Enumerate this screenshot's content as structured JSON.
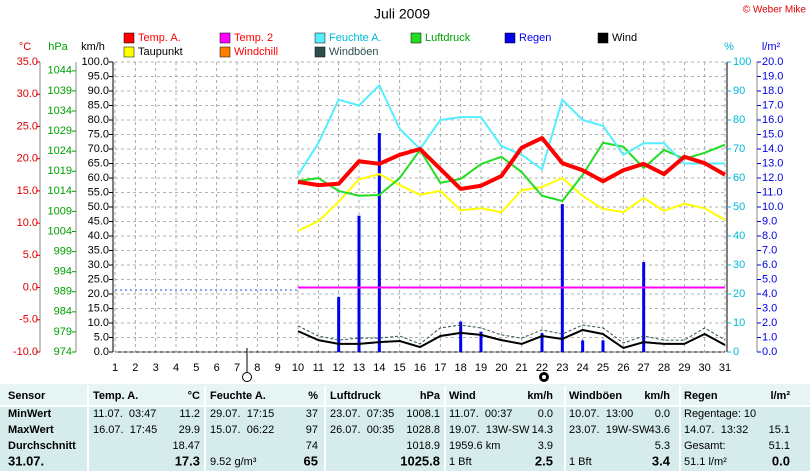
{
  "chart_data": {
    "type": "line",
    "title": "Juli 2009",
    "copyright": "© Weber Mike",
    "categories": [
      1,
      2,
      3,
      4,
      5,
      6,
      7,
      8,
      9,
      10,
      11,
      12,
      13,
      14,
      15,
      16,
      17,
      18,
      19,
      20,
      21,
      22,
      23,
      24,
      25,
      26,
      27,
      28,
      29,
      30,
      31
    ],
    "y_label": "km/h",
    "ylim": [
      0,
      100
    ],
    "yticks": [
      {
        "value": 100,
        "label": "100.0"
      },
      {
        "value": 95,
        "label": "95.0"
      },
      {
        "value": 90,
        "label": "90.0"
      },
      {
        "value": 85,
        "label": "85.0"
      },
      {
        "value": 80,
        "label": "80.0"
      },
      {
        "value": 75,
        "label": "75.0"
      },
      {
        "value": 70,
        "label": "70.0"
      },
      {
        "value": 65,
        "label": "65.0"
      },
      {
        "value": 60,
        "label": "60.0"
      },
      {
        "value": 55,
        "label": "55.0"
      },
      {
        "value": 50,
        "label": "50.0"
      },
      {
        "value": 45,
        "label": "45.0"
      },
      {
        "value": 40,
        "label": "40.0"
      },
      {
        "value": 35,
        "label": "35.0"
      },
      {
        "value": 30,
        "label": "30.0"
      },
      {
        "value": 25,
        "label": "25.0"
      },
      {
        "value": 20,
        "label": "20.0"
      },
      {
        "value": 15,
        "label": "15.0"
      },
      {
        "value": 10,
        "label": "10.0"
      },
      {
        "value": 5,
        "label": "5.0"
      },
      {
        "value": 0,
        "label": "0.0"
      }
    ],
    "y2_label": "%",
    "y2lim": [
      0,
      100
    ],
    "y2ticks": [
      100,
      90,
      80,
      70,
      60,
      50,
      40,
      30,
      20,
      10,
      0
    ],
    "temp_axis": {
      "label": "°C",
      "lim": [
        -10,
        35
      ],
      "color": "#e00000",
      "ticks": [
        {
          "value": 35,
          "label": "35.0"
        },
        {
          "value": 30,
          "label": "30.0"
        },
        {
          "value": 25,
          "label": "25.0"
        },
        {
          "value": 20,
          "label": "20.0"
        },
        {
          "value": 15,
          "label": "15.0"
        },
        {
          "value": 10,
          "label": "10.0"
        },
        {
          "value": 5,
          "label": "5.0"
        },
        {
          "value": 0,
          "label": "0.0"
        },
        {
          "value": -5,
          "label": "-5.0"
        },
        {
          "value": -10,
          "label": "-10.0"
        }
      ]
    },
    "pressure_axis": {
      "label": "hPa",
      "lim": [
        974,
        1046.2
      ],
      "color": "#00a000",
      "ticks": [
        1044,
        1039,
        1034,
        1029,
        1024,
        1019,
        1014,
        1009,
        1004,
        999,
        994,
        989,
        984,
        979,
        974
      ]
    },
    "rain_axis": {
      "label": "l/m²",
      "lim": [
        0,
        20
      ],
      "color": "#0000e0",
      "ticks": [
        {
          "value": 20,
          "label": "20.0"
        },
        {
          "value": 19,
          "label": "19.0"
        },
        {
          "value": 18,
          "label": "18.0"
        },
        {
          "value": 17,
          "label": "17.0"
        },
        {
          "value": 16,
          "label": "16.0"
        },
        {
          "value": 15,
          "label": "15.0"
        },
        {
          "value": 14,
          "label": "14.0"
        },
        {
          "value": 13,
          "label": "13.0"
        },
        {
          "value": 12,
          "label": "12.0"
        },
        {
          "value": 11,
          "label": "11.0"
        },
        {
          "value": 10,
          "label": "10.0"
        },
        {
          "value": 9,
          "label": "9.0"
        },
        {
          "value": 8,
          "label": "8.0"
        },
        {
          "value": 7,
          "label": "7.0"
        },
        {
          "value": 6,
          "label": "6.0"
        },
        {
          "value": 5,
          "label": "5.0"
        },
        {
          "value": 4,
          "label": "4.0"
        },
        {
          "value": 3,
          "label": "3.0"
        },
        {
          "value": 2,
          "label": "2.0"
        },
        {
          "value": 1,
          "label": "1.0"
        },
        {
          "value": 0,
          "label": "0.0"
        }
      ]
    },
    "y2_color": "#00b8d8",
    "grid": true,
    "series": [
      {
        "name": "Temp. A.",
        "color": "#ff0000",
        "axis": "temp",
        "values": [
          null,
          null,
          null,
          null,
          null,
          null,
          null,
          null,
          null,
          16.4,
          15.9,
          16.1,
          19.6,
          19.2,
          20.6,
          21.5,
          18.4,
          15.3,
          15.8,
          17.3,
          21.7,
          23.2,
          19.3,
          18.2,
          16.5,
          18.2,
          19.2,
          17.6,
          20.3,
          19.3,
          17.5
        ]
      },
      {
        "name": "Temp. 2",
        "color": "#ff00ff",
        "axis": "temp",
        "values": [
          null,
          null,
          null,
          null,
          null,
          null,
          null,
          null,
          null,
          0,
          0,
          0,
          0,
          0,
          0,
          0,
          0,
          0,
          0,
          0,
          0,
          0,
          0,
          0,
          0,
          0,
          0,
          0,
          0,
          0,
          0
        ]
      },
      {
        "name": "Feuchte A.",
        "color": "#55eeff",
        "axis": "y2",
        "values": [
          null,
          null,
          null,
          null,
          null,
          null,
          null,
          null,
          null,
          61,
          72,
          87,
          85,
          92,
          77,
          70,
          80,
          81,
          81,
          71,
          68,
          63,
          87,
          80,
          78,
          68,
          72,
          72,
          65,
          65,
          65
        ]
      },
      {
        "name": "Luftdruck",
        "color": "#22dd22",
        "axis": "pressure",
        "values": [
          null,
          null,
          null,
          null,
          null,
          null,
          null,
          null,
          null,
          1016.6,
          1017.3,
          1014.1,
          1012.9,
          1013.1,
          1017.3,
          1024.3,
          1016.1,
          1017.1,
          1020.8,
          1022.6,
          1018.8,
          1012.9,
          1011.6,
          1018.1,
          1026.1,
          1025.1,
          1019.8,
          1024.3,
          1022.1,
          1023.6,
          1025.6
        ]
      },
      {
        "name": "Regen",
        "color": "#0000ee",
        "axis": "rain",
        "type": "bar",
        "values": [
          null,
          null,
          null,
          null,
          null,
          null,
          null,
          null,
          null,
          0,
          0,
          3.8,
          9.4,
          15.1,
          0,
          0,
          0,
          2.1,
          1.4,
          0,
          0,
          1.3,
          10.2,
          0.8,
          0.8,
          0,
          6.2,
          0,
          0,
          0,
          0
        ]
      },
      {
        "name": "Wind",
        "color": "#000000",
        "axis": "y",
        "values": [
          null,
          null,
          null,
          null,
          null,
          null,
          null,
          null,
          null,
          7.2,
          4.1,
          2.8,
          2.8,
          3.4,
          3.8,
          1.7,
          5.5,
          6.6,
          5.9,
          4.1,
          2.8,
          5.5,
          4.5,
          7.6,
          6.2,
          1.4,
          3.4,
          2.8,
          2.8,
          6.2,
          2.4
        ]
      },
      {
        "name": "Taupunkt",
        "color": "#ffff00",
        "axis": "temp",
        "values": [
          null,
          null,
          null,
          null,
          null,
          null,
          null,
          null,
          null,
          8.8,
          10.3,
          13.3,
          16.8,
          17.6,
          15.9,
          14.4,
          15.0,
          12.0,
          12.3,
          11.7,
          15.1,
          15.6,
          17.0,
          14.2,
          12.2,
          11.7,
          13.9,
          11.9,
          13.0,
          12.3,
          10.5
        ]
      },
      {
        "name": "Windchill",
        "color": "#ff8000",
        "axis": "temp",
        "values": [
          null,
          null,
          null,
          null,
          null,
          null,
          null,
          null,
          null,
          null,
          null,
          null,
          null,
          null,
          null,
          null,
          null,
          null,
          null,
          null,
          null,
          null,
          null,
          null,
          null,
          null,
          null,
          null,
          null,
          null,
          null
        ]
      },
      {
        "name": "Windböen",
        "color": "#2f4f4f",
        "axis": "y",
        "style": "dashed",
        "values": [
          null,
          null,
          null,
          null,
          null,
          null,
          null,
          null,
          null,
          9.0,
          5.5,
          4.1,
          4.8,
          4.8,
          5.5,
          2.8,
          8.3,
          9.3,
          8.3,
          5.9,
          4.8,
          7.6,
          6.2,
          9.3,
          8.3,
          3.1,
          5.5,
          4.1,
          4.1,
          8.3,
          4.1
        ]
      }
    ]
  },
  "table": {
    "header": [
      "Sensor",
      {
        "name": "Temp. A.",
        "unit": "°C"
      },
      {
        "name": "Feuchte A.",
        "unit": "%"
      },
      {
        "name": "Luftdruck",
        "unit": "hPa"
      },
      {
        "name": "Wind",
        "unit": "km/h"
      },
      {
        "name": "Windböen",
        "unit": "km/h"
      },
      {
        "name": "Regen",
        "unit": "l/m²"
      }
    ],
    "rows": [
      {
        "label": "MinWert",
        "cells": [
          {
            "text": "11.07.  03:47",
            "value": "11.2"
          },
          {
            "text": "29.07.  17:15",
            "value": "37"
          },
          {
            "text": "23.07.  07:35",
            "value": "1008.1"
          },
          {
            "text": "11.07.  00:37",
            "value": "0.0"
          },
          {
            "text": "10.07.  13:00",
            "value": "0.0"
          },
          {
            "text": "Regentage: 10"
          }
        ]
      },
      {
        "label": "MaxWert",
        "cells": [
          {
            "text": "16.07.  17:45",
            "value": "29.9"
          },
          {
            "text": "15.07.  06:22",
            "value": "97"
          },
          {
            "text": "26.07.  00:35",
            "value": "1028.8"
          },
          {
            "text": "19.07.  13W-SW",
            "value": "14.3"
          },
          {
            "text": "23.07.  19W-SW",
            "value": "43.6"
          },
          {
            "text": "14.07.  13:32",
            "value": "15.1"
          }
        ]
      },
      {
        "label": "Durchschnitt",
        "cells": [
          {
            "value": "18.47"
          },
          {
            "value": "74"
          },
          {
            "value": "1018.9"
          },
          {
            "text": "1959.6 km",
            "value": "3.9"
          },
          {
            "value": "5.3"
          },
          {
            "text": "Gesamt:",
            "value": "51.1"
          }
        ]
      },
      {
        "label": "31.07.",
        "cells": [
          {
            "value": "17.3"
          },
          {
            "text": "9.52 g/m³",
            "value": "65"
          },
          {
            "value": "1025.8"
          },
          {
            "text": "1 Bft",
            "value": "2.5"
          },
          {
            "text": "1 Bft",
            "value": "3.4"
          },
          {
            "text": "51.1 l/m²",
            "value": "0.0"
          }
        ]
      }
    ]
  }
}
